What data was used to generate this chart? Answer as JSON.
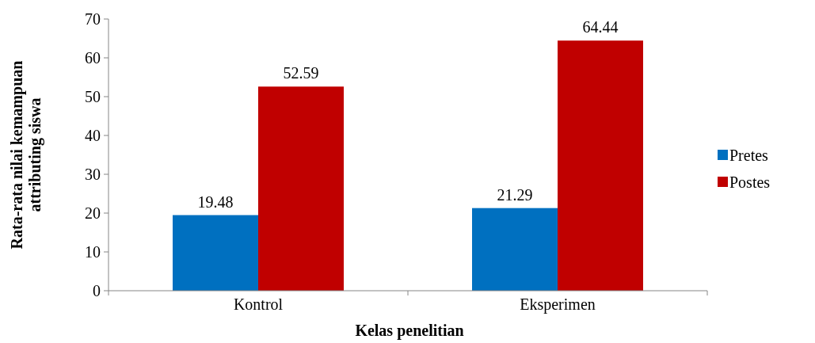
{
  "chart_data": {
    "type": "bar",
    "xlabel": "Kelas penelitian",
    "ylabel": "Rata-rata nilai kemampuan attributing siswa",
    "categories": [
      "Kontrol",
      "Eksperimen"
    ],
    "series": [
      {
        "name": "Pretes",
        "color": "#0070c0",
        "values": [
          19.48,
          21.29
        ]
      },
      {
        "name": "Postes",
        "color": "#c00000",
        "values": [
          52.59,
          64.44
        ]
      }
    ],
    "ylim": [
      0,
      70
    ],
    "yticks": [
      0,
      10,
      20,
      30,
      40,
      50,
      60,
      70
    ],
    "data_labels": true,
    "legend": "right",
    "grid": false
  }
}
